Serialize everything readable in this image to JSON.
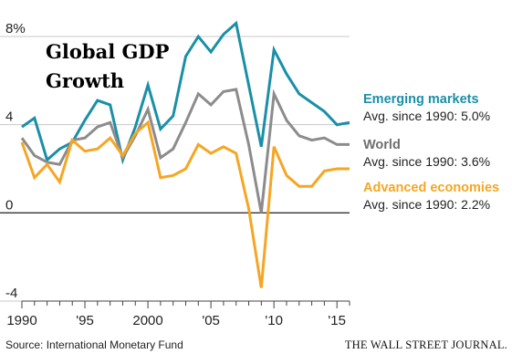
{
  "chart_data": {
    "type": "line",
    "title_lines": [
      "Global GDP",
      "Growth"
    ],
    "xlabel": "",
    "ylabel": "",
    "x": [
      1990,
      1991,
      1992,
      1993,
      1994,
      1995,
      1996,
      1997,
      1998,
      1999,
      2000,
      2001,
      2002,
      2003,
      2004,
      2005,
      2006,
      2007,
      2008,
      2009,
      2010,
      2011,
      2012,
      2013,
      2014,
      2015,
      2016
    ],
    "xlim": [
      1990,
      2016
    ],
    "ylim": [
      -4,
      8
    ],
    "y_ticks": [
      8,
      4,
      0,
      -4
    ],
    "y_tick_labels": [
      "8%",
      "4",
      "0",
      "-4"
    ],
    "x_ticks": [
      1990,
      1995,
      2000,
      2005,
      2010,
      2015
    ],
    "x_tick_labels": [
      "1990",
      "'95",
      "2000",
      "'05",
      "'10",
      "'15"
    ],
    "grid": true,
    "series": [
      {
        "name": "Emerging markets",
        "note": "Avg. since 1990: 5.0%",
        "color": "#1a8fa8",
        "values": [
          3.9,
          4.3,
          2.4,
          2.9,
          3.2,
          4.2,
          5.1,
          4.9,
          2.4,
          3.9,
          5.8,
          3.8,
          4.4,
          7.1,
          8.0,
          7.3,
          8.1,
          8.6,
          5.8,
          3.0,
          7.4,
          6.3,
          5.4,
          5.0,
          4.6,
          4.0,
          4.1
        ]
      },
      {
        "name": "World",
        "note": "Avg. since 1990: 3.6%",
        "color": "#8c8c8c",
        "values": [
          3.4,
          2.6,
          2.3,
          2.2,
          3.3,
          3.4,
          3.9,
          4.1,
          2.5,
          3.5,
          4.7,
          2.5,
          2.9,
          4.1,
          5.4,
          4.9,
          5.5,
          5.6,
          3.1,
          0.0,
          5.4,
          4.2,
          3.5,
          3.3,
          3.4,
          3.1,
          3.1
        ]
      },
      {
        "name": "Advanced economies",
        "note": "Avg. since 1990: 2.2%",
        "color": "#f5a623",
        "values": [
          3.2,
          1.6,
          2.2,
          1.4,
          3.3,
          2.8,
          2.9,
          3.4,
          2.6,
          3.6,
          4.1,
          1.6,
          1.7,
          2.0,
          3.1,
          2.7,
          3.0,
          2.7,
          0.2,
          -3.4,
          3.0,
          1.7,
          1.2,
          1.2,
          1.9,
          2.0,
          2.0
        ]
      }
    ],
    "legend_placement": "right"
  },
  "source": "Source: International Monetary Fund",
  "publisher": "THE WALL STREET JOURNAL."
}
